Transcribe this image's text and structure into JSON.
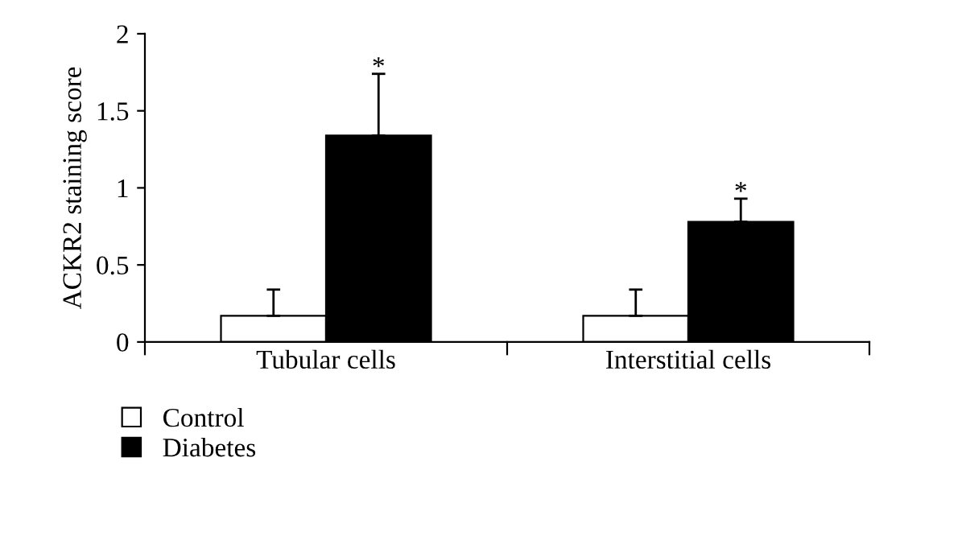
{
  "chart_data": {
    "type": "bar",
    "ylabel": "ACKR2 staining score",
    "categories": [
      "Tubular cells",
      "Interstitial cells"
    ],
    "series": [
      {
        "name": "Control",
        "color": "#ffffff",
        "values": [
          0.17,
          0.17
        ],
        "errors": [
          [
            0.17,
            0.34
          ],
          [
            0.17,
            0.34
          ]
        ]
      },
      {
        "name": "Diabetes",
        "color": "#000000",
        "values": [
          1.34,
          0.78
        ],
        "errors": [
          [
            1.34,
            1.74
          ],
          [
            0.78,
            0.93
          ]
        ]
      }
    ],
    "annotations": [
      "*",
      "*"
    ],
    "ylim": [
      0,
      2
    ],
    "yticks": [
      0,
      0.5,
      1,
      1.5,
      2
    ],
    "grid": false,
    "legend": "bottom left"
  }
}
